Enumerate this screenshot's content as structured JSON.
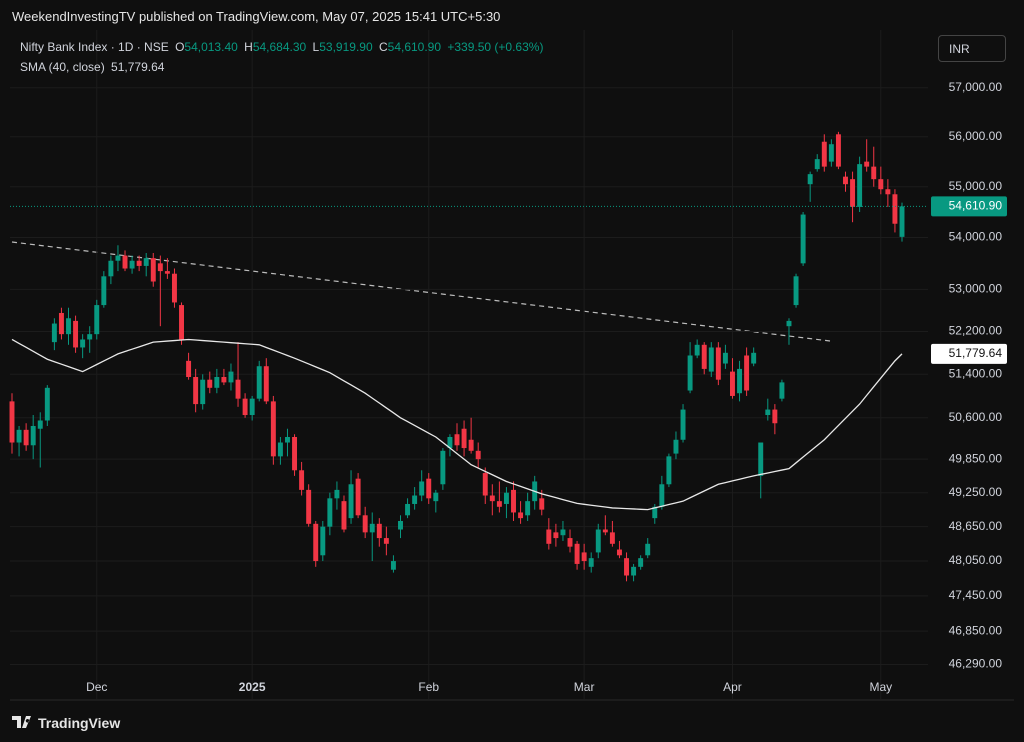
{
  "header": {
    "publisher": "WeekendInvestingTV published on TradingView.com, May 07, 2025 15:41 UTC+5:30"
  },
  "footer": {
    "brand": "TradingView"
  },
  "chart_data": {
    "type": "candlestick",
    "legend": {
      "symbol": "Nifty Bank Index · 1D · NSE",
      "ohlc": [
        {
          "key": "O",
          "value": "54,013.40"
        },
        {
          "key": "H",
          "value": "54,684.30"
        },
        {
          "key": "L",
          "value": "53,919.90"
        },
        {
          "key": "C",
          "value": "54,610.90"
        }
      ],
      "change": "+339.50 (+0.63%)",
      "sma_value": "51,779.64"
    },
    "currency": "INR",
    "categories": [
      null,
      null,
      null,
      null,
      null,
      null,
      null,
      null,
      null,
      null,
      null,
      null,
      "Dec",
      null,
      null,
      null,
      null,
      null,
      null,
      null,
      null,
      null,
      null,
      null,
      null,
      null,
      null,
      null,
      null,
      null,
      null,
      null,
      null,
      null,
      "2025",
      null,
      null,
      null,
      null,
      null,
      null,
      null,
      null,
      null,
      null,
      null,
      null,
      null,
      null,
      null,
      null,
      null,
      null,
      null,
      null,
      null,
      null,
      null,
      null,
      "Feb",
      null,
      null,
      null,
      null,
      null,
      null,
      null,
      null,
      null,
      null,
      null,
      null,
      null,
      null,
      null,
      null,
      null,
      null,
      null,
      null,
      null,
      "Mar",
      null,
      null,
      null,
      null,
      null,
      null,
      null,
      null,
      null,
      null,
      null,
      null,
      null,
      null,
      null,
      null,
      null,
      null,
      null,
      null,
      "Apr",
      null,
      null,
      null,
      null,
      null,
      null,
      null,
      null,
      null,
      null,
      null,
      null,
      null,
      null,
      null,
      null,
      null,
      null,
      null,
      null,
      "May",
      null,
      null,
      null
    ],
    "open": [
      50900,
      50150,
      50380,
      50100,
      50400,
      50550,
      52000,
      52550,
      52150,
      52400,
      51900,
      52050,
      52150,
      52700,
      53250,
      53550,
      53650,
      53400,
      53550,
      53450,
      53600,
      53500,
      53350,
      53300,
      52700,
      51650,
      51350,
      50850,
      51300,
      51150,
      51350,
      51250,
      51300,
      50950,
      50650,
      50950,
      51550,
      50900,
      49900,
      50150,
      50250,
      49650,
      49300,
      48700,
      48150,
      48650,
      49150,
      49100,
      48800,
      49500,
      48850,
      48550,
      48700,
      48450,
      47900,
      48600,
      48850,
      49050,
      49200,
      49500,
      49100,
      49400,
      50050,
      50300,
      50400,
      50200,
      50000,
      49600,
      49200,
      49100,
      49050,
      49300,
      48900,
      48850,
      49100,
      49150,
      48600,
      48550,
      48500,
      48450,
      48350,
      48200,
      47950,
      48200,
      48600,
      48550,
      48250,
      48100,
      47800,
      47950,
      48150,
      48800,
      49000,
      49400,
      49950,
      50200,
      51100,
      51750,
      51950,
      51450,
      51900,
      51600,
      51450,
      51050,
      51750,
      51600,
      49550,
      50650,
      50750,
      50950,
      52300,
      52700,
      53500,
      55050,
      55350,
      55900,
      55500,
      56050,
      55200,
      55150,
      54600,
      55500,
      55400,
      55150,
      54950,
      54850,
      54013.4
    ],
    "high": [
      51050,
      50450,
      50500,
      50650,
      50700,
      51200,
      52450,
      52650,
      52650,
      52500,
      52150,
      52300,
      52800,
      53350,
      53650,
      53850,
      53750,
      53650,
      53650,
      53700,
      53700,
      53650,
      53600,
      53400,
      52750,
      51800,
      51500,
      51400,
      51450,
      51500,
      51500,
      51600,
      52000,
      51050,
      51000,
      51650,
      51700,
      51000,
      50250,
      50400,
      50300,
      49800,
      49400,
      48750,
      48750,
      49250,
      49450,
      49200,
      49650,
      49600,
      49000,
      48900,
      48800,
      48650,
      48150,
      48850,
      49150,
      49350,
      49650,
      49600,
      49300,
      50050,
      50300,
      50500,
      50550,
      50600,
      50150,
      49700,
      49400,
      49450,
      49350,
      49450,
      49100,
      49250,
      49550,
      49300,
      48800,
      48700,
      48750,
      48600,
      48400,
      48350,
      48200,
      48700,
      48850,
      48750,
      48400,
      48200,
      48000,
      48150,
      48450,
      49050,
      49550,
      49950,
      50350,
      50850,
      52000,
      52050,
      52000,
      52000,
      52000,
      51950,
      51700,
      51650,
      51900,
      51900,
      50100,
      50950,
      50850,
      51300,
      52450,
      53300,
      54500,
      55300,
      55650,
      56050,
      55950,
      56100,
      55300,
      55300,
      55600,
      55950,
      55800,
      55400,
      55150,
      54950,
      54684.3
    ],
    "low": [
      49950,
      49900,
      50000,
      49850,
      49700,
      50450,
      51850,
      52050,
      51950,
      51800,
      51700,
      51800,
      52050,
      52650,
      53100,
      53350,
      53350,
      53300,
      53350,
      53250,
      53050,
      52300,
      53200,
      52650,
      51950,
      51300,
      50700,
      50750,
      51050,
      51050,
      51200,
      51100,
      50800,
      50600,
      50550,
      50900,
      50850,
      49750,
      49750,
      49900,
      49550,
      49200,
      48650,
      47950,
      48050,
      48500,
      48950,
      48550,
      48700,
      48800,
      48450,
      48050,
      48300,
      48150,
      47850,
      48450,
      48800,
      48950,
      49100,
      49050,
      48900,
      49300,
      49900,
      50000,
      49900,
      49950,
      49700,
      49050,
      48850,
      48900,
      48800,
      48750,
      48700,
      48750,
      48950,
      48850,
      48250,
      48300,
      48400,
      48200,
      47900,
      47900,
      47850,
      48100,
      48500,
      48300,
      48100,
      47700,
      47700,
      47900,
      48100,
      48700,
      48950,
      49350,
      49850,
      50150,
      51050,
      51700,
      51400,
      51350,
      51200,
      51500,
      50950,
      50900,
      51000,
      51550,
      49150,
      50550,
      50300,
      50900,
      51950,
      52650,
      53450,
      54700,
      55300,
      55300,
      55400,
      55350,
      54900,
      54300,
      54500,
      55300,
      55000,
      54850,
      54600,
      54100,
      53919.9
    ],
    "close": [
      50150,
      50380,
      50100,
      50450,
      50550,
      51150,
      52350,
      52150,
      52450,
      51900,
      52050,
      52150,
      52700,
      53250,
      53550,
      53650,
      53400,
      53550,
      53450,
      53600,
      53150,
      53350,
      53300,
      52750,
      52050,
      51350,
      50850,
      51300,
      51150,
      51350,
      51250,
      51450,
      50950,
      50650,
      50950,
      51550,
      50900,
      49900,
      50150,
      50250,
      49650,
      49300,
      48700,
      48050,
      48650,
      49150,
      49300,
      48600,
      49400,
      48850,
      48550,
      48700,
      48450,
      48350,
      48050,
      48750,
      49050,
      49200,
      49450,
      49150,
      49250,
      50000,
      50250,
      50100,
      50050,
      50000,
      49850,
      49200,
      49100,
      49000,
      49250,
      48900,
      48800,
      49100,
      49450,
      48950,
      48350,
      48450,
      48600,
      48300,
      48000,
      48050,
      48100,
      48600,
      48550,
      48350,
      48150,
      47800,
      47950,
      48100,
      48350,
      49000,
      49400,
      49900,
      50200,
      50750,
      51750,
      51950,
      51500,
      51900,
      51300,
      51800,
      51000,
      51500,
      51100,
      51800,
      50150,
      50750,
      50500,
      51250,
      52400,
      53250,
      54450,
      55250,
      55550,
      55400,
      55850,
      55400,
      55050,
      54600,
      55450,
      55400,
      55150,
      54950,
      54850,
      54270,
      54610.9
    ],
    "up_color": "#089981",
    "down_color": "#f23645",
    "sma": {
      "name": "SMA (40, close)",
      "color": "#e8e8e8",
      "values": [
        52050,
        51976,
        51902,
        51828,
        51754,
        51680,
        51634,
        51588,
        51542,
        51496,
        51450,
        51516,
        51582,
        51648,
        51714,
        51780,
        51824,
        51868,
        51912,
        51956,
        52000,
        52010,
        52020,
        52030,
        52040,
        52050,
        52040,
        52030,
        52020,
        52010,
        52000,
        51990,
        51980,
        51970,
        51960,
        51950,
        51900,
        51850,
        51800,
        51750,
        51700,
        51646,
        51592,
        51538,
        51484,
        51430,
        51354,
        51278,
        51202,
        51126,
        51050,
        50960,
        50870,
        50780,
        50690,
        50600,
        50530,
        50460,
        50390,
        50320,
        50250,
        50150,
        50050,
        49950,
        49850,
        49750,
        49690,
        49630,
        49570,
        49510,
        49450,
        49406,
        49362,
        49318,
        49274,
        49230,
        49196,
        49162,
        49128,
        49094,
        49060,
        49044,
        49028,
        49012,
        48996,
        48980,
        48974,
        48968,
        48962,
        48956,
        48950,
        48980,
        49010,
        49040,
        49070,
        49100,
        49160,
        49220,
        49280,
        49340,
        49400,
        49430,
        49460,
        49490,
        49520,
        49550,
        49576,
        49602,
        49628,
        49654,
        49680,
        49784,
        49888,
        49992,
        50096,
        50200,
        50330,
        50460,
        50590,
        50720,
        50850,
        51010,
        51170,
        51330,
        51490,
        51650,
        51779.64
      ]
    },
    "last_price_label": "54,610.90",
    "sma_price_label": "51,779.64",
    "ylim": [
      45700,
      58200
    ],
    "log_scale": true,
    "grid": true,
    "yticks": [
      {
        "value": 57000,
        "label": "57,000.00"
      },
      {
        "value": 56000,
        "label": "56,000.00"
      },
      {
        "value": 55000,
        "label": "55,000.00"
      },
      {
        "value": 54000,
        "label": "54,000.00"
      },
      {
        "value": 53000,
        "label": "53,000.00"
      },
      {
        "value": 52200,
        "label": "52,200.00"
      },
      {
        "value": 51400,
        "label": "51,400.00"
      },
      {
        "value": 50600,
        "label": "50,600.00"
      },
      {
        "value": 49850,
        "label": "49,850.00"
      },
      {
        "value": 49250,
        "label": "49,250.00"
      },
      {
        "value": 48650,
        "label": "48,650.00"
      },
      {
        "value": 48050,
        "label": "48,050.00"
      },
      {
        "value": 47450,
        "label": "47,450.00"
      },
      {
        "value": 46850,
        "label": "46,850.00"
      },
      {
        "value": 46290,
        "label": "46,290.00"
      }
    ]
  }
}
